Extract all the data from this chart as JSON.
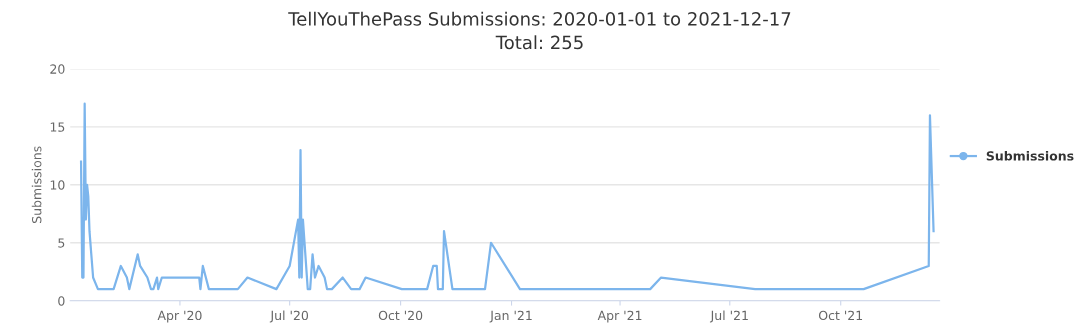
{
  "chart_data": {
    "type": "line",
    "title": "TellYouThePass Submissions: 2020-01-01 to 2021-12-17",
    "subtitle": "Total: 255",
    "ylabel": "Submissions",
    "x": [
      "2020-01-10",
      "2020-01-11",
      "2020-01-12",
      "2020-01-13",
      "2020-01-14",
      "2020-01-15",
      "2020-01-16",
      "2020-01-17",
      "2020-01-20",
      "2020-01-24",
      "2020-02-06",
      "2020-02-12",
      "2020-02-17",
      "2020-02-19",
      "2020-02-26",
      "2020-02-28",
      "2020-03-05",
      "2020-03-08",
      "2020-03-10",
      "2020-03-13",
      "2020-03-14",
      "2020-03-17",
      "2020-04-17",
      "2020-04-18",
      "2020-04-20",
      "2020-04-25",
      "2020-05-19",
      "2020-05-27",
      "2020-06-20",
      "2020-07-01",
      "2020-07-08",
      "2020-07-09",
      "2020-07-10",
      "2020-07-11",
      "2020-07-12",
      "2020-07-16",
      "2020-07-18",
      "2020-07-20",
      "2020-07-22",
      "2020-07-25",
      "2020-07-30",
      "2020-08-01",
      "2020-08-05",
      "2020-08-14",
      "2020-08-21",
      "2020-08-28",
      "2020-09-02",
      "2020-10-02",
      "2020-10-23",
      "2020-10-28",
      "2020-10-31",
      "2020-11-01",
      "2020-11-05",
      "2020-11-06",
      "2020-11-13",
      "2020-12-10",
      "2020-12-15",
      "2021-01-08",
      "2021-04-26",
      "2021-05-05",
      "2021-07-22",
      "2021-10-20",
      "2021-12-13",
      "2021-12-14",
      "2021-12-17"
    ],
    "series": [
      {
        "name": "Submissions",
        "color": "#7cb5ec",
        "values": [
          12,
          2,
          2,
          17,
          7,
          10,
          9,
          6,
          2,
          1,
          1,
          3,
          2,
          1,
          4,
          3,
          2,
          1,
          1,
          2,
          1,
          2,
          2,
          1,
          3,
          1,
          1,
          2,
          1,
          3,
          7,
          2,
          13,
          2,
          7,
          1,
          1,
          4,
          2,
          3,
          2,
          1,
          1,
          2,
          1,
          1,
          2,
          1,
          1,
          3,
          3,
          1,
          1,
          6,
          1,
          1,
          5,
          1,
          1,
          2,
          1,
          1,
          3,
          16,
          6
        ]
      }
    ],
    "xlim": [
      "2020-01-01",
      "2021-12-22"
    ],
    "xticks": [
      {
        "value": "2020-04-01",
        "label": "Apr '20"
      },
      {
        "value": "2020-07-01",
        "label": "Jul '20"
      },
      {
        "value": "2020-10-01",
        "label": "Oct '20"
      },
      {
        "value": "2021-01-01",
        "label": "Jan '21"
      },
      {
        "value": "2021-04-01",
        "label": "Apr '21"
      },
      {
        "value": "2021-07-01",
        "label": "Jul '21"
      },
      {
        "value": "2021-10-01",
        "label": "Oct '21"
      }
    ],
    "ylim": [
      0,
      20
    ],
    "yticks": [
      0,
      5,
      10,
      15,
      20
    ],
    "grid": "y",
    "legend": "right",
    "line_style": "solid"
  }
}
